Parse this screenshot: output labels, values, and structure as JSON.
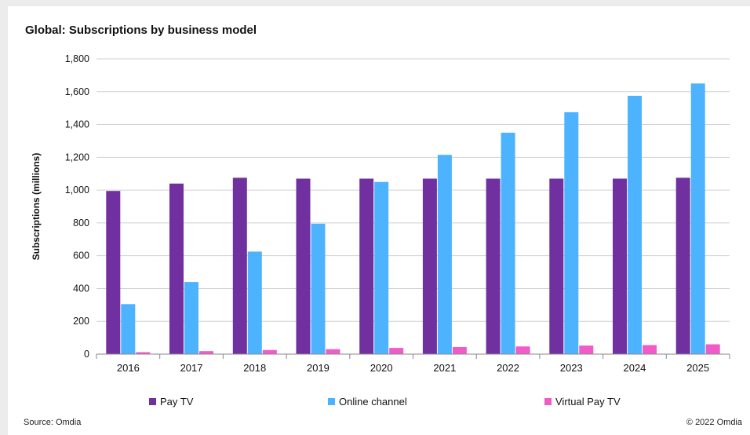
{
  "chart_data": {
    "type": "bar",
    "title": "Global: Subscriptions  by business model",
    "xlabel": "",
    "ylabel": "Subscriptions (millions)",
    "categories": [
      "2016",
      "2017",
      "2018",
      "2019",
      "2020",
      "2021",
      "2022",
      "2023",
      "2024",
      "2025"
    ],
    "ylim": [
      0,
      1800
    ],
    "yticks": [
      0,
      200,
      400,
      600,
      800,
      1000,
      1200,
      1400,
      1600,
      1800
    ],
    "ytick_labels": [
      "0",
      "200",
      "400",
      "600",
      "800",
      "1,000",
      "1,200",
      "1,400",
      "1,600",
      "1,800"
    ],
    "grid": true,
    "legend_position": "bottom",
    "series": [
      {
        "name": "Pay TV",
        "color": "#7030a0",
        "values": [
          995,
          1040,
          1075,
          1070,
          1070,
          1070,
          1070,
          1070,
          1070,
          1075
        ]
      },
      {
        "name": "Online channel",
        "color": "#4db3ff",
        "values": [
          305,
          440,
          625,
          795,
          1050,
          1215,
          1350,
          1475,
          1575,
          1650
        ]
      },
      {
        "name": "Virtual Pay TV",
        "color": "#f05bc8",
        "values": [
          12,
          18,
          25,
          30,
          38,
          43,
          47,
          52,
          55,
          60
        ]
      }
    ]
  },
  "footer": {
    "source": "Source: Omdia",
    "copyright": "© 2022 Omdia"
  }
}
